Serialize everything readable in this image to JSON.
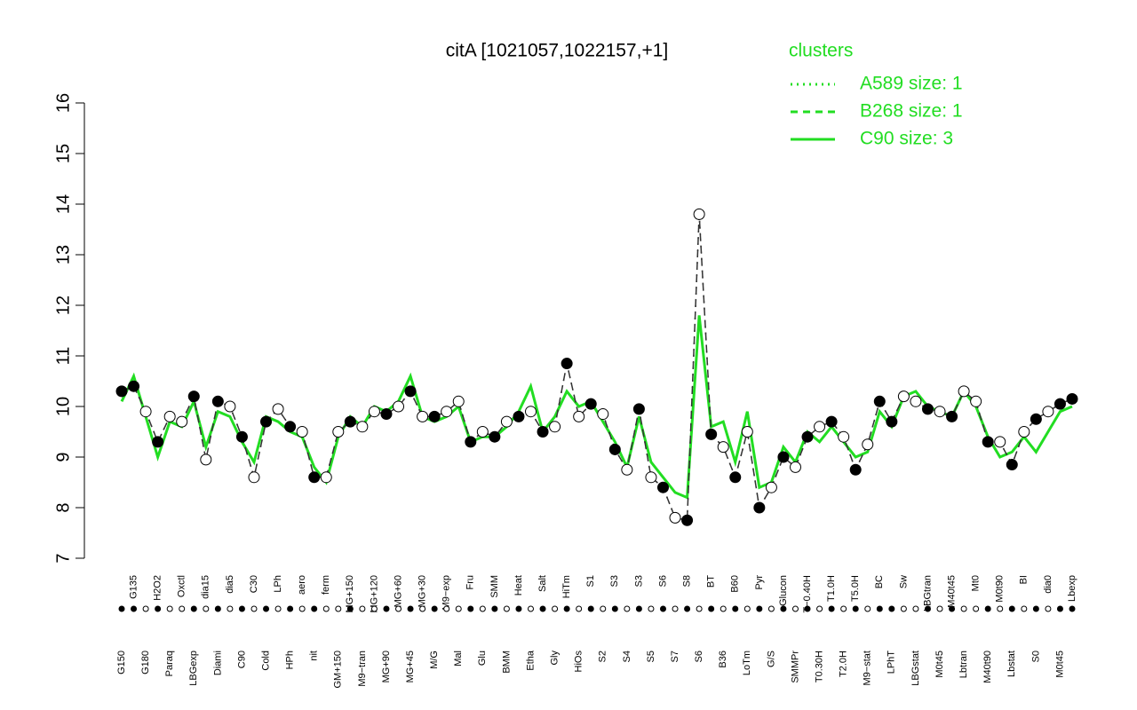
{
  "chart_data": {
    "type": "line",
    "title": "citA [1021057,1022157,+1]",
    "legend_title": "clusters",
    "legend_color": "#22dd22",
    "categories": [
      "G150",
      "G135",
      "G180",
      "H2O2",
      "Paraq",
      "Oxctl",
      "LBGexp",
      "dia15",
      "Diami",
      "dia5",
      "C90",
      "C30",
      "Cold",
      "LPh",
      "HPh",
      "aero",
      "nit",
      "ferm",
      "GM+150",
      "MG+150",
      "M9−tran",
      "MG+120",
      "MG+90",
      "MG+60",
      "MG+45",
      "MG+30",
      "M/G",
      "M9−exp",
      "Mal",
      "Fru",
      "Glu",
      "SMM",
      "BMM",
      "Heat",
      "Etha",
      "Salt",
      "Gly",
      "HiTm",
      "HiOs",
      "S1",
      "S2",
      "S3",
      "S4",
      "S3",
      "S5",
      "S6",
      "S7",
      "S8",
      "S6",
      "BT",
      "B36",
      "B60",
      "LoTm",
      "Pyr",
      "G/S",
      "Glucon",
      "SMMPr",
      "T−0.40H",
      "T0.30H",
      "T1.0H",
      "T2.0H",
      "T5.0H",
      "M9−stat",
      "BC",
      "LPhT",
      "Sw",
      "LBGstat",
      "LBGtran",
      "M0t45",
      "M40t45",
      "Lbtran",
      "Mt0",
      "M40t90",
      "M0t90",
      "Lbstat",
      "BI",
      "S0",
      "dia0",
      "M0t45",
      "Lbexp"
    ],
    "filled": [
      true,
      true,
      false,
      true,
      false,
      false,
      true,
      false,
      true,
      false,
      true,
      false,
      true,
      false,
      true,
      false,
      true,
      false,
      false,
      true,
      false,
      false,
      true,
      false,
      true,
      false,
      true,
      false,
      false,
      true,
      false,
      true,
      false,
      true,
      false,
      true,
      false,
      true,
      false,
      true,
      false,
      true,
      false,
      true,
      false,
      true,
      false,
      true,
      false,
      true,
      false,
      true,
      false,
      true,
      false,
      true,
      false,
      true,
      false,
      true,
      false,
      true,
      false,
      true,
      true,
      false,
      false,
      true,
      false,
      true,
      false,
      false,
      true,
      false,
      true,
      false,
      true,
      false,
      true,
      true
    ],
    "series": [
      {
        "name": "A589 size: 1",
        "color": "#333333",
        "dash": "2,5",
        "values": [
          10.3,
          10.4,
          9.9,
          9.3,
          9.8,
          9.7,
          10.2,
          8.95,
          10.1,
          10.0,
          9.4,
          8.6,
          9.7,
          9.95,
          9.6,
          9.5,
          8.6,
          8.6,
          9.5,
          9.7,
          9.6,
          9.9,
          9.85,
          10.0,
          10.3,
          9.8,
          9.8,
          9.9,
          10.1,
          9.3,
          9.5,
          9.4,
          9.7,
          9.8,
          9.9,
          9.5,
          9.6,
          10.85,
          9.8,
          10.05,
          9.85,
          9.15,
          8.75,
          9.95,
          8.6,
          8.4,
          7.8,
          7.75,
          13.8,
          9.45,
          9.2,
          8.6,
          9.5,
          8.0,
          8.4,
          9.0,
          8.8,
          9.4,
          9.6,
          9.7,
          9.4,
          8.75,
          9.25,
          10.1,
          9.7,
          10.2,
          10.1,
          9.95,
          9.9,
          9.8,
          10.3,
          10.1,
          9.3,
          9.3,
          8.85,
          9.5,
          9.75,
          9.9,
          10.05,
          10.15
        ]
      },
      {
        "name": "B268 size: 1",
        "color": "#333333",
        "dash": "8,6",
        "values": [
          10.3,
          10.4,
          9.9,
          9.3,
          9.8,
          9.7,
          10.2,
          8.95,
          10.1,
          10.0,
          9.4,
          8.6,
          9.7,
          9.95,
          9.6,
          9.5,
          8.6,
          8.6,
          9.5,
          9.7,
          9.6,
          9.9,
          9.85,
          10.0,
          10.3,
          9.8,
          9.8,
          9.9,
          10.1,
          9.3,
          9.5,
          9.4,
          9.7,
          9.8,
          9.9,
          9.5,
          9.6,
          10.85,
          9.8,
          10.05,
          9.85,
          9.15,
          8.75,
          9.95,
          8.6,
          8.4,
          7.8,
          7.75,
          13.8,
          9.45,
          9.2,
          8.6,
          9.5,
          8.0,
          8.4,
          9.0,
          8.8,
          9.4,
          9.6,
          9.7,
          9.4,
          8.75,
          9.25,
          10.1,
          9.7,
          10.2,
          10.1,
          9.95,
          9.9,
          9.8,
          10.3,
          10.1,
          9.3,
          9.3,
          8.85,
          9.5,
          9.75,
          9.9,
          10.05,
          10.15
        ]
      },
      {
        "name": "C90 size: 3",
        "color": "#22dd22",
        "dash": "none",
        "values": [
          10.1,
          10.6,
          9.8,
          9.0,
          9.7,
          9.6,
          10.1,
          9.2,
          9.9,
          9.8,
          9.3,
          8.9,
          9.8,
          9.7,
          9.5,
          9.4,
          8.8,
          8.5,
          9.4,
          9.8,
          9.6,
          10.0,
          9.9,
          10.1,
          10.6,
          9.8,
          9.7,
          9.8,
          10.0,
          9.3,
          9.4,
          9.4,
          9.6,
          9.9,
          10.4,
          9.5,
          9.8,
          10.3,
          10.0,
          10.1,
          9.7,
          9.3,
          8.8,
          9.8,
          8.9,
          8.6,
          8.3,
          8.2,
          11.8,
          9.6,
          9.7,
          8.9,
          9.9,
          8.4,
          8.5,
          9.2,
          8.9,
          9.5,
          9.3,
          9.6,
          9.3,
          9.0,
          9.1,
          9.9,
          9.6,
          10.2,
          10.3,
          10.0,
          9.9,
          9.8,
          10.3,
          10.0,
          9.4,
          9.0,
          9.1,
          9.4,
          9.1,
          9.5,
          9.9,
          10.0
        ]
      }
    ],
    "ylim": [
      7,
      16
    ],
    "yticks": [
      7,
      8,
      9,
      10,
      11,
      12,
      13,
      14,
      15,
      16
    ]
  }
}
